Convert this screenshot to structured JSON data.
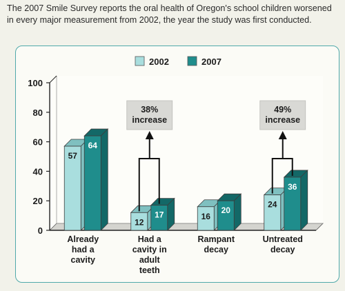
{
  "intro_text": "The 2007 Smile Survey reports the oral health of Oregon's school children worsened in every major measurement from 2002, the year the study was first conducted.",
  "colors": {
    "series_2002_front": "#a9dede",
    "series_2002_side": "#7fc0c0",
    "series_2007_front": "#1f8d8c",
    "series_2007_side": "#136867",
    "panel_border": "#4fa9aa",
    "callout_bg": "#d9d9d5"
  },
  "chart_data": {
    "type": "bar",
    "categories": [
      "Already had a cavity",
      "Had a cavity in adult teeth",
      "Rampant decay",
      "Untreated decay"
    ],
    "category_lines": [
      [
        "Already",
        "had a",
        "cavity"
      ],
      [
        "Had a",
        "cavity in",
        "adult",
        "teeth"
      ],
      [
        "Rampant",
        "decay"
      ],
      [
        "Untreated",
        "decay"
      ]
    ],
    "series": [
      {
        "name": "2002",
        "values": [
          57,
          12,
          16,
          24
        ]
      },
      {
        "name": "2007",
        "values": [
          64,
          17,
          20,
          36
        ]
      }
    ],
    "ylim": [
      0,
      100
    ],
    "yticks": [
      0,
      20,
      40,
      60,
      80,
      100
    ],
    "legend_position": "top-center",
    "annotations": [
      {
        "category_index": 1,
        "lines": [
          "38%",
          "increase"
        ]
      },
      {
        "category_index": 3,
        "lines": [
          "49%",
          "increase"
        ]
      }
    ],
    "grid": false
  }
}
